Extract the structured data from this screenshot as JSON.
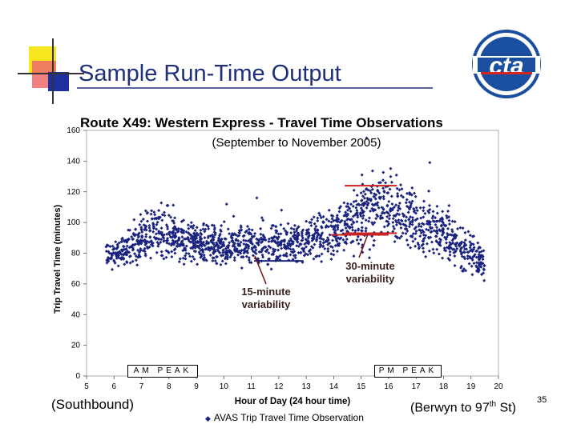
{
  "slide": {
    "title": "Sample Run-Time Output",
    "logo_text": "cta",
    "page_number": "35",
    "note_left": "(Southbound)",
    "note_right_prefix": "(Berwyn to 97",
    "note_right_sup": "th",
    "note_right_suffix": " St)",
    "colors": {
      "title": "#1f2f7a",
      "logo_blue": "#1a4fa0",
      "logo_red": "#d9231f",
      "points": "#1a237e",
      "bars": "#1a237e",
      "reference_lines": "#cc2222"
    }
  },
  "chart_data": {
    "type": "scatter",
    "title": "Route X49: Western Express - Travel Time Observations",
    "subtitle": "(September to November 2005)",
    "xlabel": "Hour of Day (24 hour time)",
    "ylabel": "Trip Travel Time (minutes)",
    "xlim": [
      5,
      20
    ],
    "ylim": [
      0,
      160
    ],
    "x_ticks": [
      5,
      6,
      7,
      8,
      9,
      10,
      11,
      12,
      13,
      14,
      15,
      16,
      17,
      18,
      19,
      20
    ],
    "y_ticks": [
      0,
      20,
      40,
      60,
      80,
      100,
      120,
      140,
      160
    ],
    "grid": false,
    "legend": {
      "position": "bottom",
      "entries": [
        "AVAS Trip Travel Time Observation"
      ]
    },
    "series": [
      {
        "name": "AVAS Trip Travel Time Observation",
        "trend_profile": [
          [
            5.7,
            78,
            4
          ],
          [
            6.5,
            83,
            5
          ],
          [
            7.0,
            90,
            7
          ],
          [
            7.5,
            95,
            8
          ],
          [
            8.0,
            93,
            8
          ],
          [
            8.5,
            88,
            7
          ],
          [
            9.0,
            87,
            6
          ],
          [
            10.0,
            85,
            6
          ],
          [
            11.0,
            86,
            6
          ],
          [
            12.0,
            87,
            6
          ],
          [
            13.0,
            88,
            6
          ],
          [
            13.8,
            92,
            7
          ],
          [
            14.5,
            100,
            9
          ],
          [
            15.0,
            108,
            11
          ],
          [
            15.5,
            112,
            12
          ],
          [
            16.0,
            110,
            12
          ],
          [
            16.5,
            105,
            11
          ],
          [
            17.0,
            100,
            10
          ],
          [
            17.5,
            96,
            9
          ],
          [
            18.0,
            92,
            8
          ],
          [
            18.5,
            86,
            7
          ],
          [
            19.0,
            80,
            6
          ],
          [
            19.5,
            72,
            5
          ]
        ],
        "notable_points": [
          [
            17.5,
            139
          ],
          [
            18.2,
            111
          ],
          [
            15.2,
            155
          ],
          [
            11.2,
            116
          ],
          [
            10.1,
            112
          ],
          [
            12.1,
            108
          ]
        ]
      }
    ],
    "reference_lines": [
      {
        "color": "#cc2222",
        "x": [
          13.9,
          16.0
        ],
        "y": 92
      },
      {
        "color": "#1a237e",
        "x": [
          11.1,
          12.9
        ],
        "y": 75
      },
      {
        "color": "#cc2222",
        "x": [
          14.4,
          16.3
        ],
        "y": 124
      },
      {
        "color": "#cc2222",
        "x": [
          14.4,
          16.3
        ],
        "y": 93
      }
    ],
    "annotations": [
      {
        "text": "15-minute variability",
        "x": 12.3,
        "y": 60
      },
      {
        "text": "30-minute variability",
        "x": 15.1,
        "y": 67
      }
    ],
    "peak_labels": [
      {
        "text": "AM PEAK",
        "x_range": [
          6.5,
          9
        ]
      },
      {
        "text": "PM PEAK",
        "x_range": [
          15.6,
          17.9
        ]
      }
    ]
  }
}
